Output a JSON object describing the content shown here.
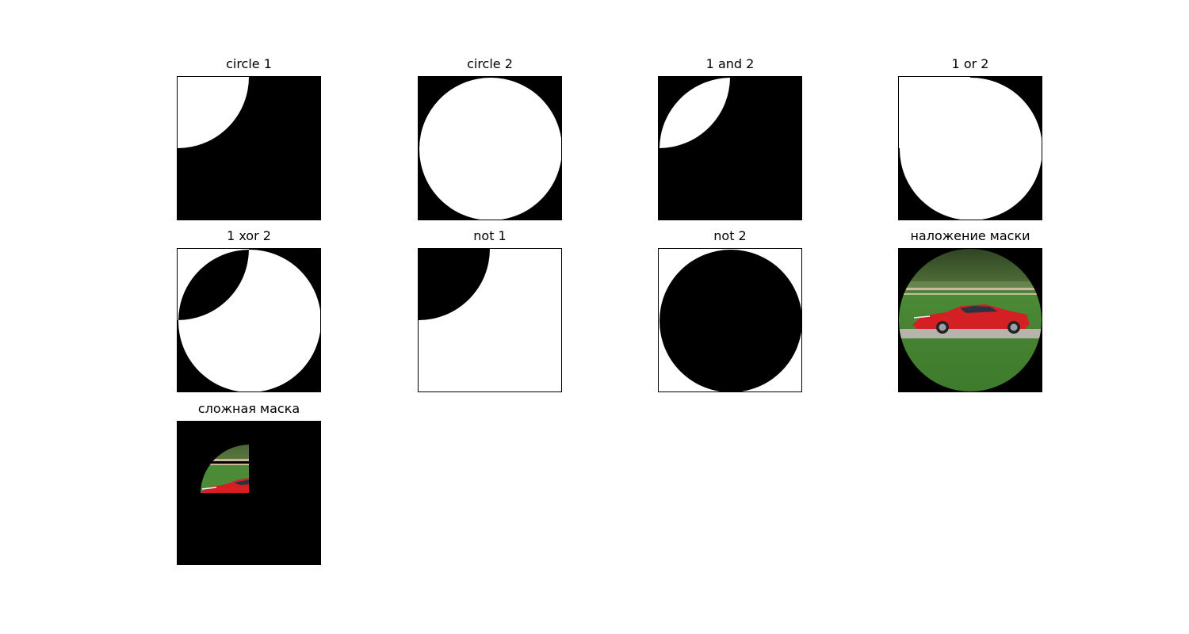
{
  "figure": {
    "panels": [
      {
        "id": "circle1",
        "title": "circle 1"
      },
      {
        "id": "circle2",
        "title": "circle 2"
      },
      {
        "id": "and",
        "title": "1 and 2"
      },
      {
        "id": "or",
        "title": "1 or 2"
      },
      {
        "id": "xor",
        "title": "1 xor 2"
      },
      {
        "id": "not1",
        "title": "not 1"
      },
      {
        "id": "not2",
        "title": "not 2"
      },
      {
        "id": "masked",
        "title": "наложение маски"
      },
      {
        "id": "complex",
        "title": "сложная маска"
      }
    ]
  },
  "colors": {
    "mask_on": "#ffffff",
    "mask_off": "#000000",
    "sky_trees": "#3f5a2e",
    "grass": "#4f8a3a",
    "road": "#b9b3ad",
    "car_red": "#d42024",
    "fence": "#c9b89a"
  }
}
